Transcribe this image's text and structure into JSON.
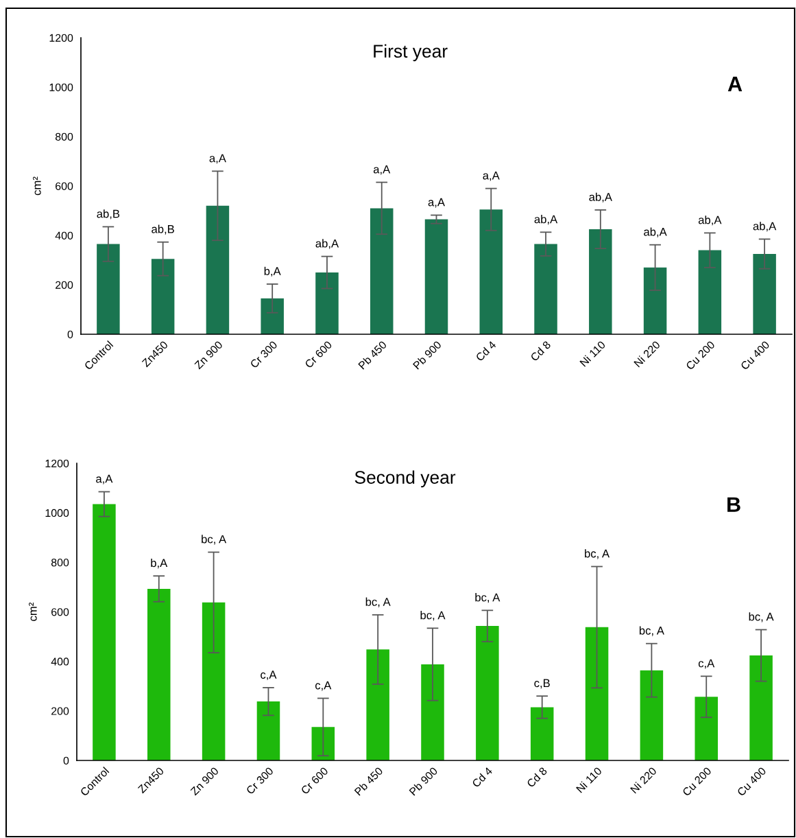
{
  "chart_data": [
    {
      "type": "bar",
      "title": "First year",
      "ylabel": "cm²",
      "color": "#1a7550",
      "categories": [
        "Control",
        "Zn450",
        "Zn 900",
        "Cr 300",
        "Cr 600",
        "Pb 450",
        "Pb 900",
        "Cd 4",
        "Cd 8",
        "Ni 110",
        "Ni 220",
        "Cu 200",
        "Cu 400"
      ],
      "values": [
        365,
        305,
        520,
        145,
        250,
        510,
        465,
        505,
        365,
        425,
        270,
        340,
        325
      ],
      "errors": [
        70,
        68,
        140,
        58,
        65,
        105,
        17,
        85,
        48,
        78,
        92,
        70,
        60
      ],
      "ylim": [
        0,
        1200
      ],
      "yticks": [
        0,
        200,
        400,
        600,
        800,
        1000,
        1200
      ],
      "annotations": [
        "ab,B",
        "ab,B",
        "a,A",
        "b,A",
        "ab,A",
        "a,A",
        "a,A",
        "a,A",
        "ab,A",
        "ab,A",
        "ab,A",
        "ab,A",
        "ab,A",
        "A"
      ]
    },
    {
      "type": "bar",
      "title": "Second year",
      "ylabel": "cm²",
      "color": "#1eb90c",
      "categories": [
        "Control",
        "Zn450",
        "Zn 900",
        "Cr 300",
        "Cr 600",
        "Pb 450",
        "Pb 900",
        "Cd 4",
        "Cd 8",
        "Ni 110",
        "Ni 220",
        "Cu 200",
        "Cu 400"
      ],
      "values": [
        1035,
        693,
        638,
        238,
        135,
        448,
        388,
        543,
        215,
        538,
        364,
        257,
        424
      ],
      "errors": [
        50,
        52,
        203,
        56,
        116,
        140,
        146,
        63,
        45,
        245,
        108,
        83,
        104
      ],
      "ylim": [
        0,
        1200
      ],
      "yticks": [
        0,
        200,
        400,
        600,
        800,
        1000,
        1200
      ],
      "annotations": [
        "a,A",
        "b,A",
        "bc, A",
        "c,A",
        "c,A",
        "bc, A",
        "bc, A",
        "bc, A",
        "c,B",
        "bc, A",
        "bc, A",
        "c,A",
        "bc, A",
        "B"
      ]
    }
  ]
}
